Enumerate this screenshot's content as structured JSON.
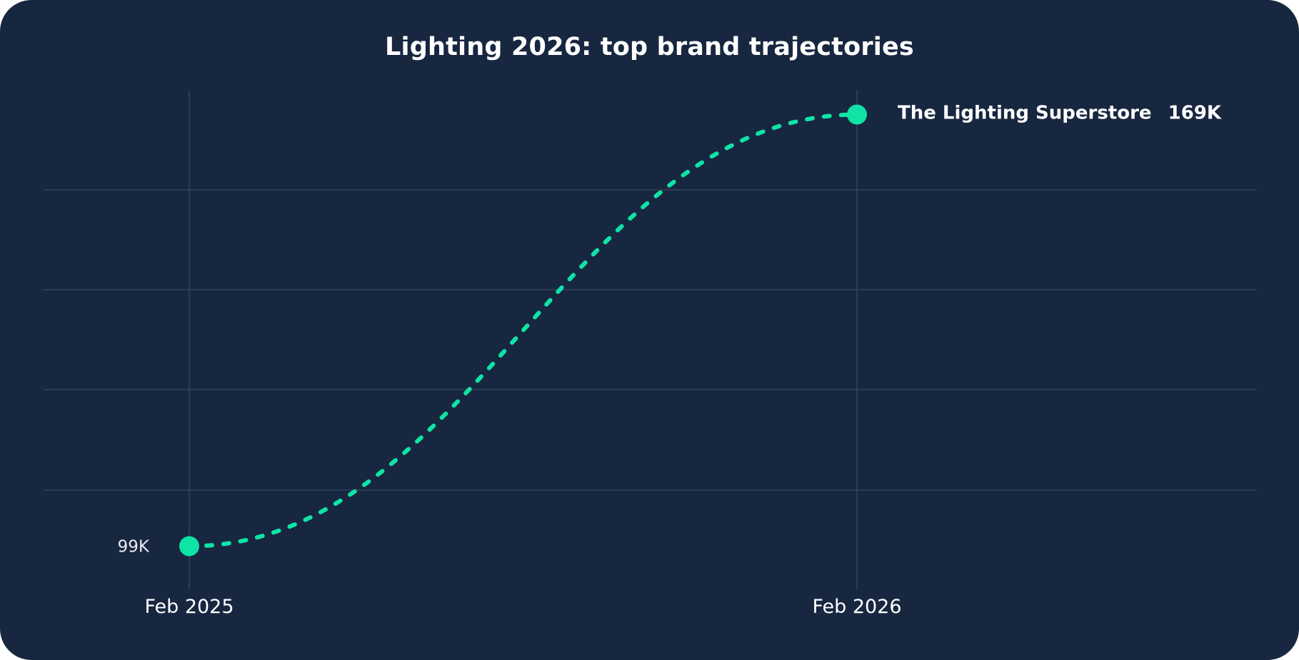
{
  "colors": {
    "background": "#172740",
    "grid": "#33445e",
    "series": "#0fe3a6",
    "text": "#ffffff"
  },
  "chart_data": {
    "type": "line",
    "title": "Lighting 2026: top brand trajectories",
    "xlabel": "",
    "ylabel": "",
    "x_tick_labels": [
      "Feb 2025",
      "Feb 2026"
    ],
    "ylim": [
      92,
      173
    ],
    "grid": true,
    "line_style": "dashed",
    "series": [
      {
        "name": "The Lighting Superstore",
        "x": [
          "Feb 2025",
          "Feb 2026"
        ],
        "values": [
          99,
          169
        ],
        "start_label": "99K",
        "end_value_label": "169K"
      }
    ]
  }
}
